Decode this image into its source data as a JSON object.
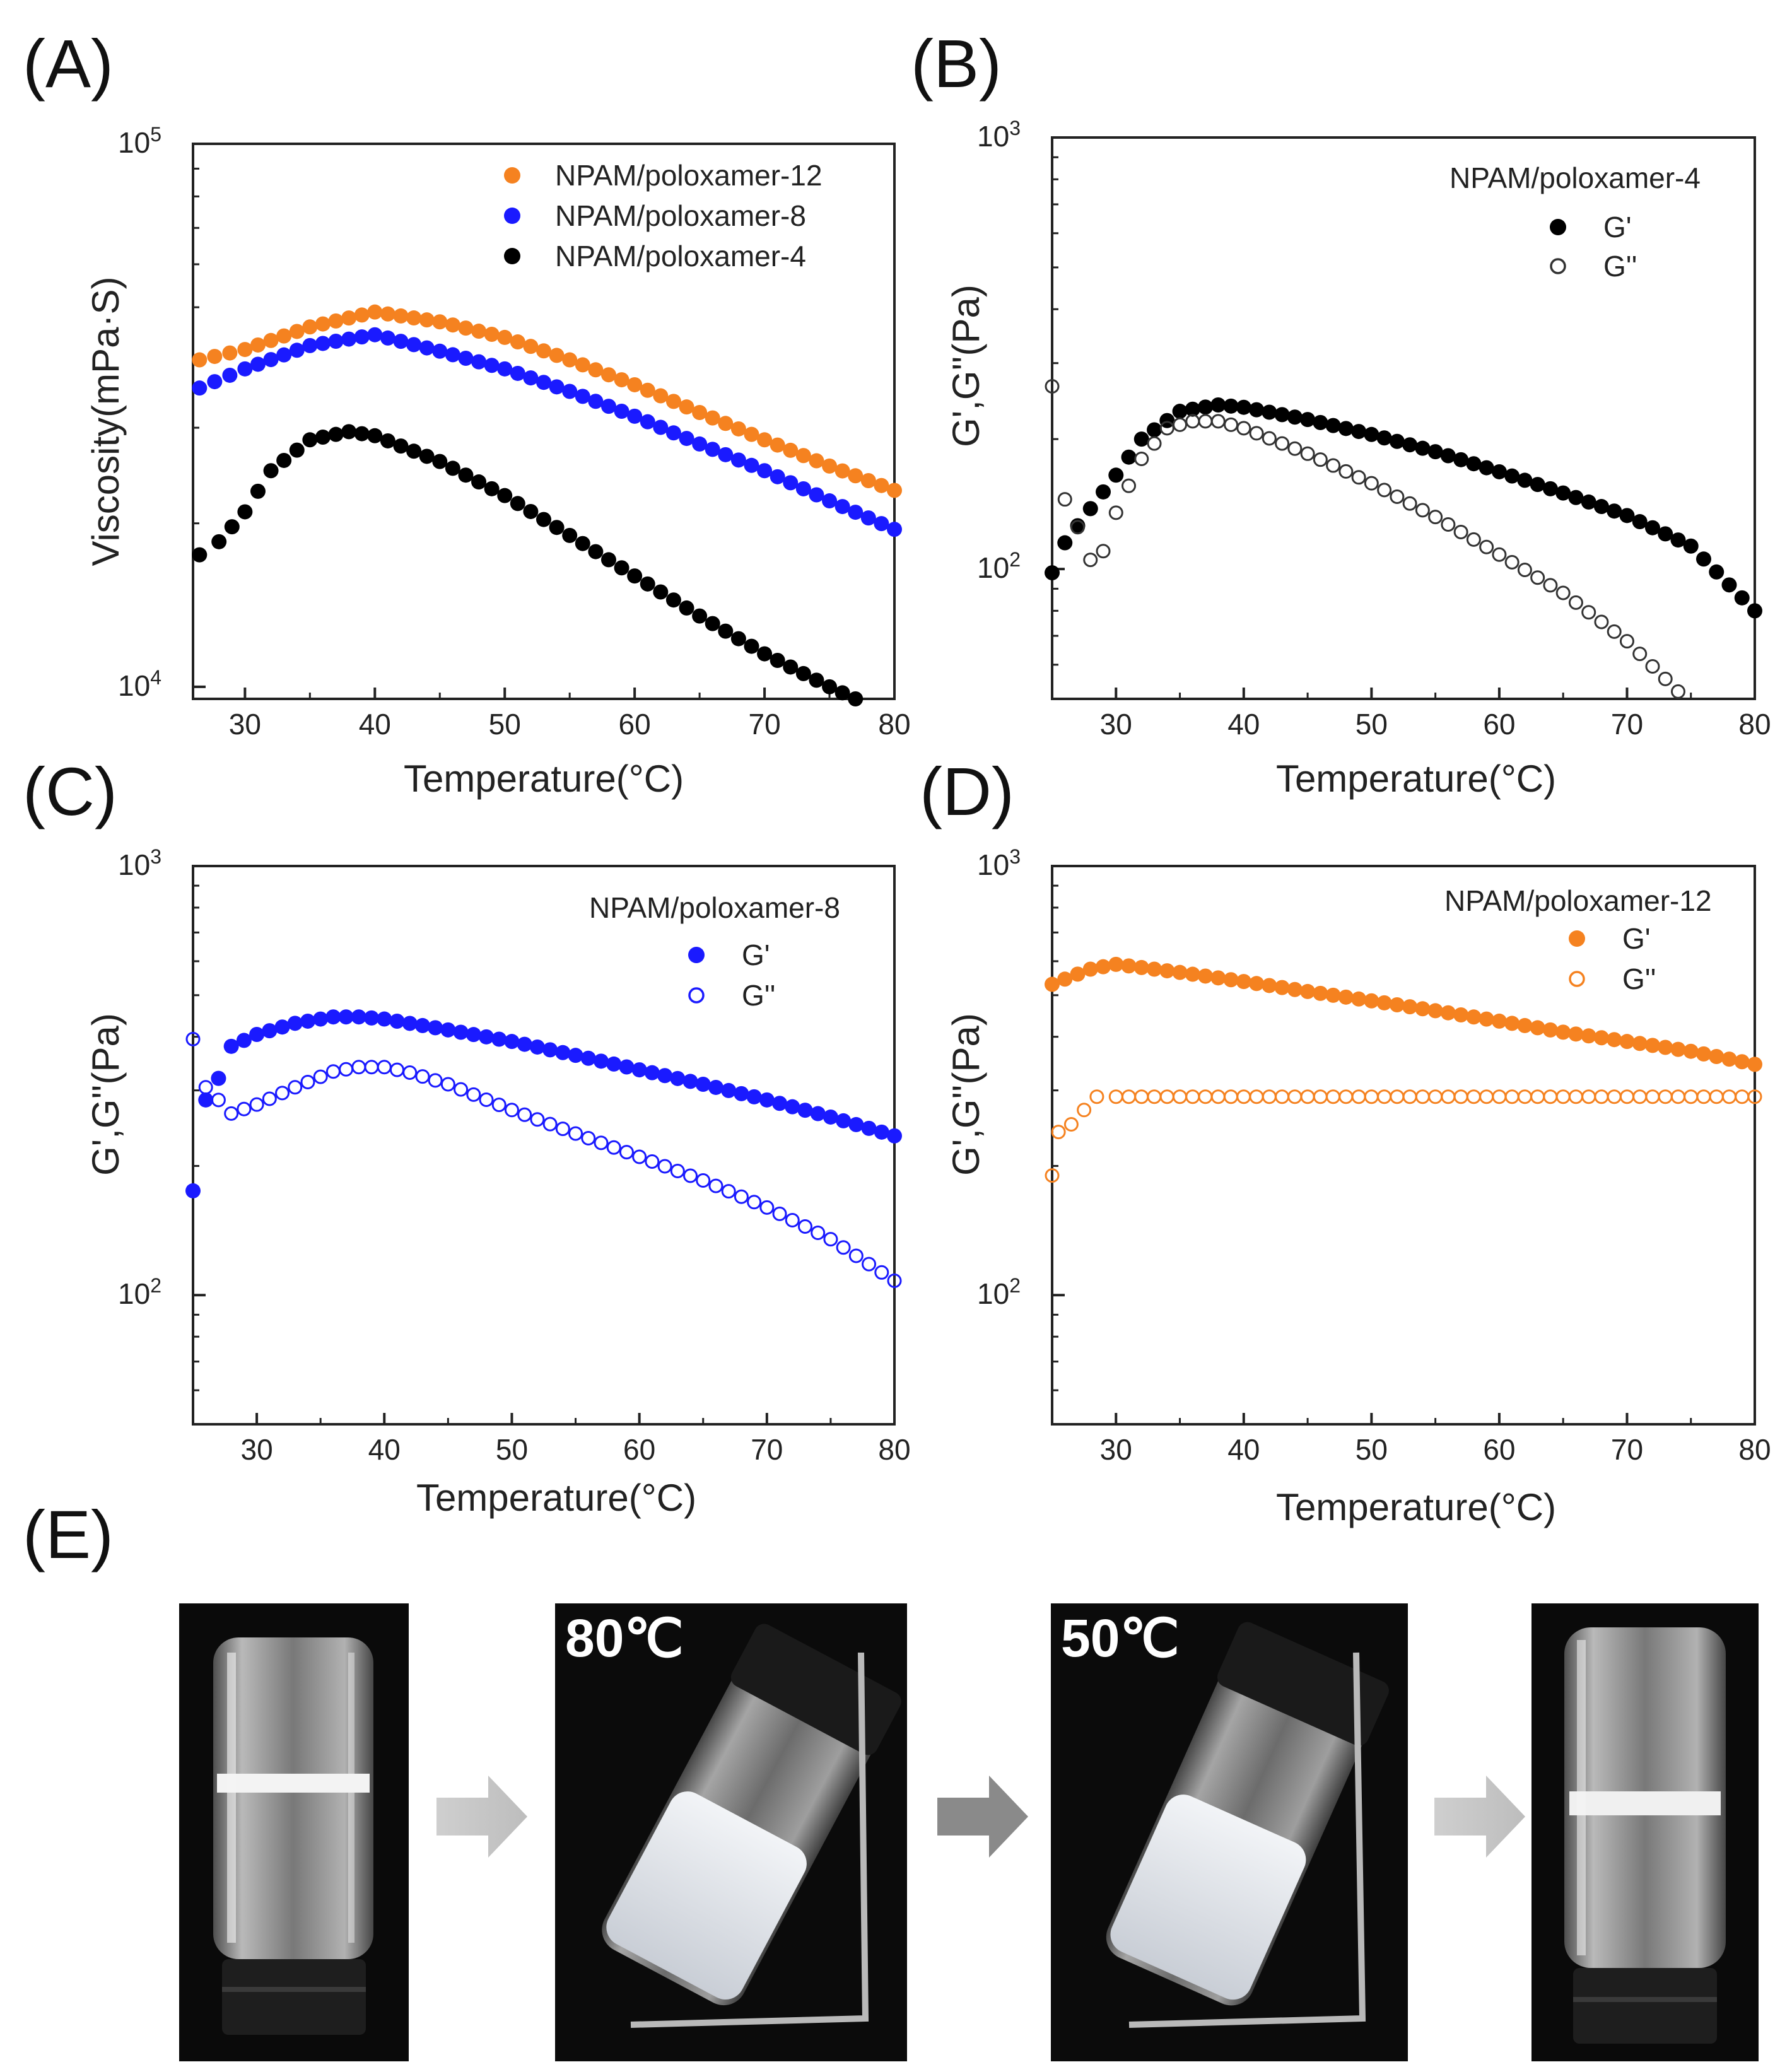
{
  "panel_labels": [
    "(A)",
    "(B)",
    "(C)",
    "(D)",
    "(E)"
  ],
  "colors": {
    "orange": "#f58220",
    "blue": "#1a1aff",
    "black": "#000000",
    "open_black": "#333333"
  },
  "chart_data": [
    {
      "id": "A",
      "type": "scatter",
      "ylog": true,
      "ylabel": "Viscosity(mPa·S)",
      "xlabel": "Temperature(°C)",
      "xlim": [
        26,
        80
      ],
      "ylim": [
        9500,
        100000
      ],
      "xticks": [
        "30",
        "40",
        "50",
        "60",
        "70",
        "80"
      ],
      "xtick_values": [
        30,
        40,
        50,
        60,
        70,
        80
      ],
      "ytick_mantissa": [
        "10",
        "10"
      ],
      "ytick_exponent": [
        "5",
        "4"
      ],
      "ytick_values": [
        100000,
        10000
      ],
      "legend_title": "",
      "series": [
        {
          "name": "NPAM/poloxamer-12",
          "color": "#f58220",
          "filled": true,
          "x": [
            26.5,
            30,
            35,
            40,
            45,
            50,
            55,
            60,
            65,
            70,
            75,
            80
          ],
          "y": [
            40000,
            41800,
            46000,
            49000,
            47000,
            44000,
            40000,
            36000,
            32000,
            28500,
            25500,
            23000
          ]
        },
        {
          "name": "NPAM/poloxamer-8",
          "color": "#1a1aff",
          "filled": true,
          "x": [
            26.5,
            30,
            35,
            40,
            45,
            50,
            55,
            60,
            65,
            70,
            75,
            80
          ],
          "y": [
            35500,
            38500,
            42500,
            44500,
            41500,
            38500,
            35000,
            31500,
            28000,
            25000,
            22000,
            19500
          ]
        },
        {
          "name": "NPAM/poloxamer-4",
          "color": "#000000",
          "filled": true,
          "x": [
            26.5,
            28,
            30,
            32,
            35,
            38,
            40,
            45,
            50,
            55,
            60,
            65,
            70,
            75,
            77
          ],
          "y": [
            17500,
            18500,
            21000,
            25000,
            28500,
            29500,
            29000,
            26000,
            22500,
            19000,
            16000,
            13500,
            11500,
            10000,
            9500
          ]
        }
      ]
    },
    {
      "id": "B",
      "type": "scatter",
      "ylog": true,
      "ylabel": "G',G''(Pa)",
      "xlabel": "Temperature(°C)",
      "xlim": [
        25,
        80
      ],
      "ylim": [
        50,
        1000
      ],
      "xticks": [
        "30",
        "40",
        "50",
        "60",
        "70",
        "80"
      ],
      "xtick_values": [
        30,
        40,
        50,
        60,
        70,
        80
      ],
      "ytick_mantissa": [
        "10",
        "10"
      ],
      "ytick_exponent": [
        "3",
        "2"
      ],
      "ytick_values": [
        1000,
        100
      ],
      "legend_title": "NPAM/poloxamer-4",
      "series": [
        {
          "name": "G'",
          "color": "#000000",
          "filled": true,
          "x": [
            25,
            26,
            28,
            30,
            32,
            35,
            38,
            40,
            45,
            50,
            55,
            60,
            65,
            70,
            75,
            80
          ],
          "y": [
            98,
            115,
            138,
            165,
            200,
            232,
            240,
            237,
            222,
            205,
            187,
            168,
            150,
            133,
            113,
            80
          ]
        },
        {
          "name": "G''",
          "color": "#333333",
          "filled": false,
          "x": [
            25,
            26,
            27,
            28,
            29,
            30,
            32,
            34,
            36,
            38,
            40,
            45,
            50,
            55,
            60,
            65,
            70,
            74
          ],
          "y": [
            265,
            145,
            125,
            105,
            110,
            135,
            180,
            212,
            220,
            220,
            212,
            185,
            158,
            132,
            108,
            88,
            68,
            52
          ]
        }
      ]
    },
    {
      "id": "C",
      "type": "scatter",
      "ylog": true,
      "ylabel": "G',G''(Pa)",
      "xlabel": "Temperature(°C)",
      "xlim": [
        25,
        80
      ],
      "ylim": [
        50,
        1000
      ],
      "xticks": [
        "30",
        "40",
        "50",
        "60",
        "70",
        "80"
      ],
      "xtick_values": [
        30,
        40,
        50,
        60,
        70,
        80
      ],
      "ytick_mantissa": [
        "10",
        "10"
      ],
      "ytick_exponent": [
        "3",
        "2"
      ],
      "ytick_values": [
        1000,
        100
      ],
      "legend_title": "NPAM/poloxamer-8",
      "series": [
        {
          "name": "G'",
          "color": "#1a1aff",
          "filled": true,
          "x": [
            25,
            26,
            27,
            28,
            30,
            33,
            36,
            38,
            40,
            45,
            50,
            55,
            60,
            65,
            70,
            75,
            80
          ],
          "y": [
            175,
            285,
            320,
            380,
            405,
            430,
            445,
            445,
            440,
            415,
            390,
            362,
            335,
            310,
            285,
            260,
            235
          ]
        },
        {
          "name": "G''",
          "color": "#1a1aff",
          "filled": false,
          "x": [
            25,
            26,
            27,
            28,
            30,
            33,
            36,
            38,
            40,
            42,
            45,
            50,
            55,
            60,
            65,
            70,
            75,
            80
          ],
          "y": [
            395,
            305,
            285,
            265,
            278,
            305,
            332,
            340,
            340,
            330,
            310,
            270,
            238,
            210,
            185,
            160,
            135,
            108
          ]
        }
      ]
    },
    {
      "id": "D",
      "type": "scatter",
      "ylog": true,
      "ylabel": "G',G''(Pa)",
      "xlabel": "Temperature(°C)",
      "xlim": [
        25,
        80
      ],
      "ylim": [
        50,
        1000
      ],
      "xticks": [
        "30",
        "40",
        "50",
        "60",
        "70",
        "80"
      ],
      "xtick_values": [
        30,
        40,
        50,
        60,
        70,
        80
      ],
      "ytick_mantissa": [
        "10",
        "10"
      ],
      "ytick_exponent": [
        "3",
        "2"
      ],
      "ytick_values": [
        1000,
        100
      ],
      "legend_title": "NPAM/poloxamer-12",
      "series": [
        {
          "name": "G'",
          "color": "#f58220",
          "filled": true,
          "x": [
            25,
            26,
            28,
            30,
            32,
            35,
            40,
            45,
            50,
            55,
            60,
            65,
            70,
            75,
            80
          ],
          "y": [
            530,
            545,
            575,
            590,
            580,
            565,
            538,
            510,
            485,
            460,
            435,
            410,
            390,
            370,
            345
          ]
        },
        {
          "name": "G''",
          "color": "#f58220",
          "filled": false,
          "x": [
            25,
            25.5,
            26.5,
            27.5,
            28.5,
            30,
            35,
            40,
            45,
            50,
            55,
            60,
            65,
            70,
            75,
            80
          ],
          "y": [
            190,
            240,
            250,
            270,
            290,
            290,
            290,
            290,
            290,
            290,
            290,
            290,
            290,
            290,
            290,
            290
          ]
        }
      ]
    }
  ],
  "photos": {
    "labels": [
      "80℃",
      "50℃"
    ],
    "arrow_count": 3
  }
}
